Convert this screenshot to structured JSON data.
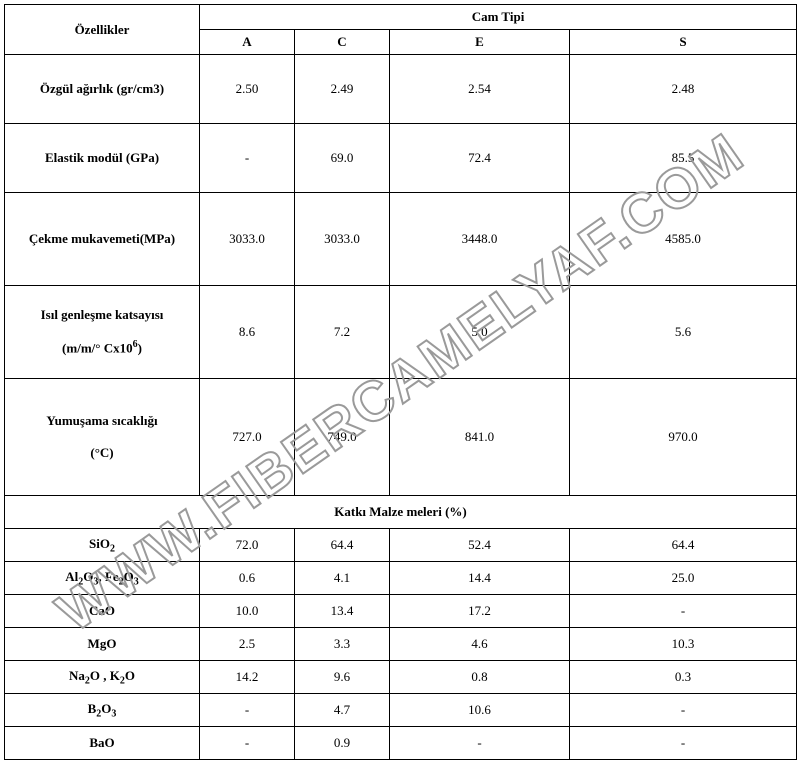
{
  "watermark": "WWW.FIBERCAMELYAF.COM",
  "header": {
    "prop_label": "Özellikler",
    "group_label": "Cam  Tipi",
    "cols": [
      "A",
      "C",
      "E",
      "S"
    ]
  },
  "properties": [
    {
      "label": "Özgül ağırlık (gr/cm3)",
      "vals": [
        "2.50",
        "2.49",
        "2.54",
        "2.48"
      ],
      "cls": "h-tall"
    },
    {
      "label": "Elastik modül (GPa)",
      "vals": [
        "-",
        "69.0",
        "72.4",
        "85.5"
      ],
      "cls": "h-tall"
    },
    {
      "label": "Çekme mukavemeti(MPa)",
      "vals": [
        "3033.0",
        "3033.0",
        "3448.0",
        "4585.0"
      ],
      "cls": "h-vtall"
    },
    {
      "label_html": "Isıl genleşme katsayısı<br><br>(m/m/° Cx10<sup>6</sup>)",
      "vals": [
        "8.6",
        "7.2",
        "5.0",
        "5.6"
      ],
      "cls": "h-vtall"
    },
    {
      "label_html": "Yumuşama sıcaklığı<br><br>(°C)",
      "vals": [
        "727.0",
        "749.0",
        "841.0",
        "970.0"
      ],
      "cls": "h-xvtall"
    }
  ],
  "section_label": "Katkı Malze meleri (%)",
  "additives": [
    {
      "label_html": "SiO<sub>2</sub>",
      "vals": [
        "72.0",
        "64.4",
        "52.4",
        "64.4"
      ]
    },
    {
      "label_html": "Al<sub>2</sub>O<sub>3</sub>, Fe<sub>2</sub>O<sub>3</sub>",
      "vals": [
        "0.6",
        "4.1",
        "14.4",
        "25.0"
      ]
    },
    {
      "label_html": "CaO",
      "vals": [
        "10.0",
        "13.4",
        "17.2",
        "-"
      ]
    },
    {
      "label_html": "MgO",
      "vals": [
        "2.5",
        "3.3",
        "4.6",
        "10.3"
      ]
    },
    {
      "label_html": "Na<sub>2</sub>O , K<sub>2</sub>O",
      "vals": [
        "14.2",
        "9.6",
        "0.8",
        "0.3"
      ]
    },
    {
      "label_html": "B<sub>2</sub>O<sub>3</sub>",
      "vals": [
        "-",
        "4.7",
        "10.6",
        "-"
      ]
    },
    {
      "label_html": "BaO",
      "vals": [
        "-",
        "0.9",
        "-",
        "-"
      ]
    }
  ]
}
